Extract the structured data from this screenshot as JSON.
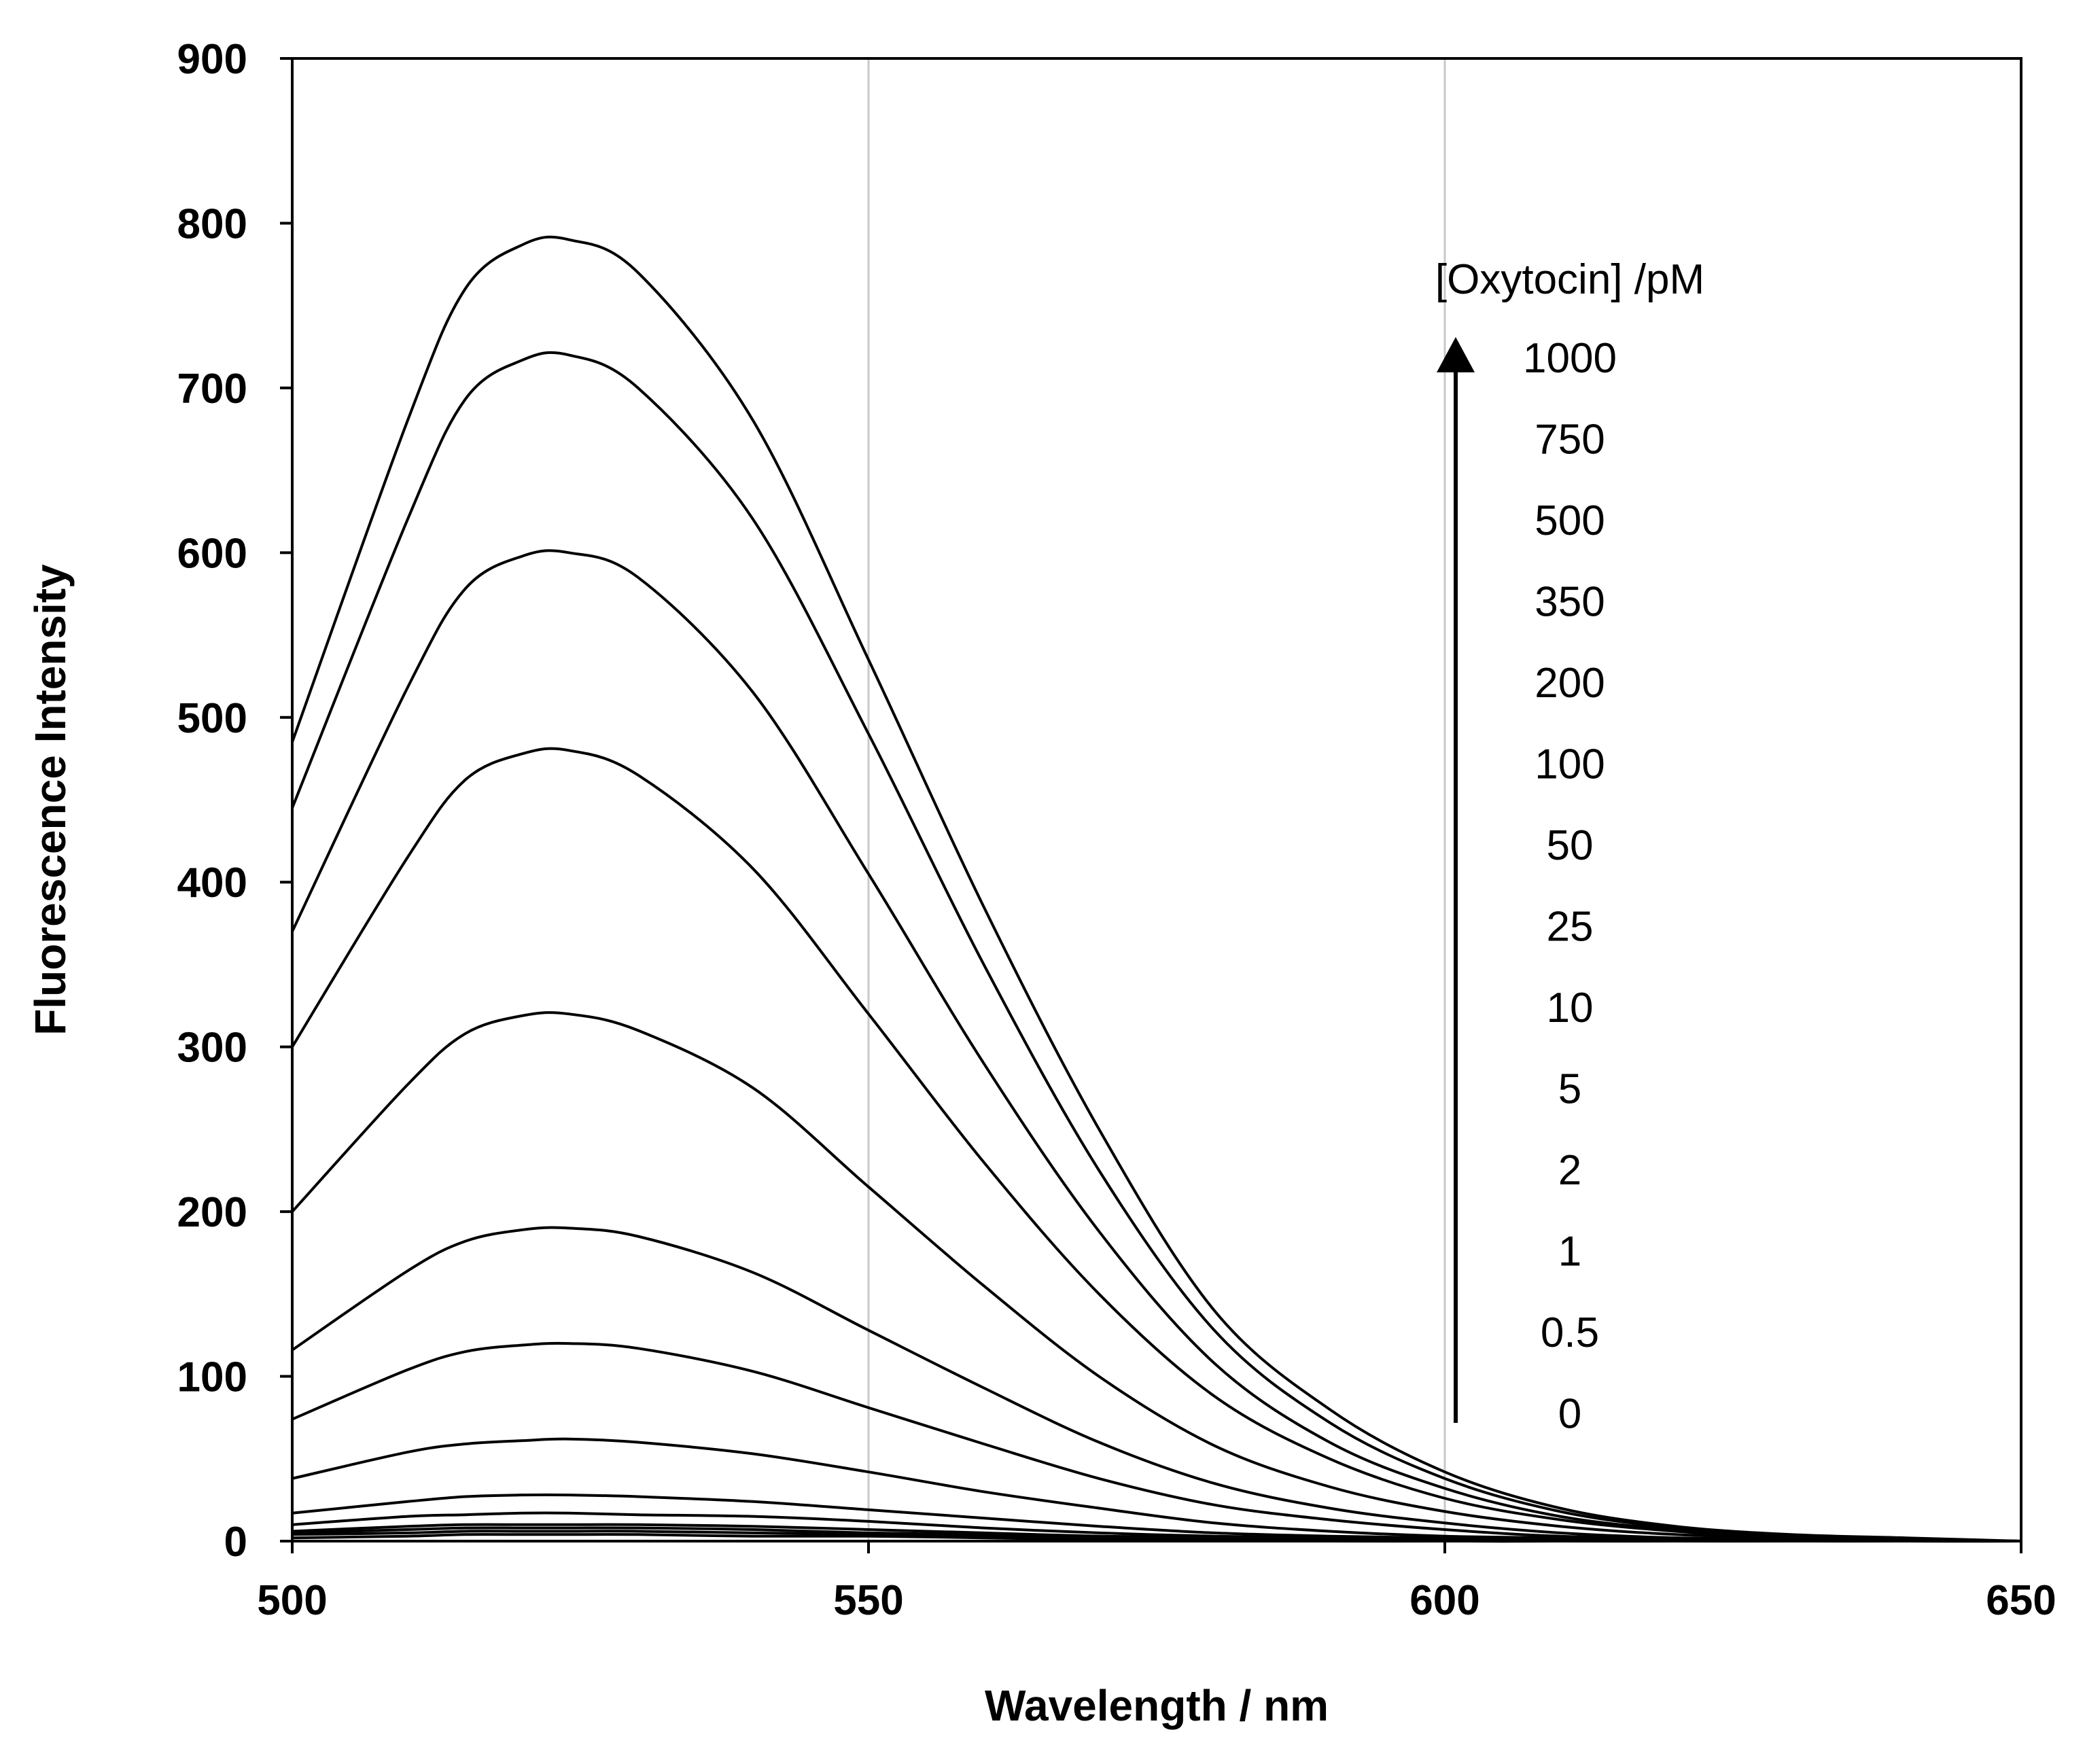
{
  "chart_data": {
    "type": "line",
    "title": "",
    "xlabel": "Wavelength / nm",
    "ylabel": "Fluorescence Intensity",
    "xlim": [
      500,
      650
    ],
    "ylim": [
      0,
      900
    ],
    "xticks": [
      500,
      550,
      600,
      650
    ],
    "yticks": [
      0,
      100,
      200,
      300,
      400,
      500,
      600,
      700,
      800,
      900
    ],
    "grid": "vertical gridlines at x ticks",
    "legend": {
      "title": "[Oxytocin] /pM",
      "placement": "top-right",
      "arrow": "upward arrow beside labels, from 0 to 1000",
      "labels": [
        "1000",
        "750",
        "500",
        "350",
        "200",
        "100",
        "50",
        "25",
        "10",
        "5",
        "2",
        "1",
        "0.5",
        "0"
      ]
    },
    "x": [
      500,
      510,
      515,
      520,
      524,
      530,
      540,
      550,
      560,
      570,
      580,
      590,
      600,
      610,
      620,
      630,
      640,
      650
    ],
    "series": [
      {
        "name": "1000",
        "peak": 790,
        "values": [
          485,
          680,
          760,
          787,
          790,
          770,
          680,
          535,
          385,
          250,
          140,
          80,
          42,
          20,
          9,
          4,
          2,
          0
        ]
      },
      {
        "name": "750",
        "peak": 720,
        "values": [
          445,
          620,
          693,
          717,
          720,
          700,
          620,
          490,
          350,
          225,
          128,
          72,
          38,
          18,
          8,
          3,
          1,
          0
        ]
      },
      {
        "name": "500",
        "peak": 600,
        "values": [
          370,
          518,
          578,
          598,
          600,
          585,
          515,
          405,
          290,
          188,
          108,
          60,
          32,
          15,
          7,
          3,
          1,
          0
        ]
      },
      {
        "name": "350",
        "peak": 480,
        "values": [
          300,
          415,
          462,
          478,
          480,
          465,
          408,
          320,
          230,
          150,
          88,
          50,
          26,
          13,
          6,
          2,
          1,
          0
        ]
      },
      {
        "name": "200",
        "peak": 320,
        "values": [
          200,
          277,
          308,
          319,
          320,
          310,
          275,
          215,
          155,
          100,
          58,
          33,
          18,
          9,
          4,
          2,
          1,
          0
        ]
      },
      {
        "name": "100",
        "peak": 190,
        "values": [
          116,
          164,
          182,
          189,
          190,
          185,
          163,
          128,
          93,
          60,
          35,
          20,
          11,
          5,
          2,
          1,
          0,
          0
        ]
      },
      {
        "name": "50",
        "peak": 120,
        "values": [
          74,
          104,
          115,
          119,
          120,
          117,
          103,
          81,
          59,
          38,
          22,
          13,
          7,
          3,
          2,
          1,
          0,
          0
        ]
      },
      {
        "name": "25",
        "peak": 62,
        "values": [
          38,
          54,
          59,
          61,
          62,
          60,
          53,
          42,
          30,
          20,
          11,
          6,
          3,
          2,
          1,
          0,
          0,
          0
        ]
      },
      {
        "name": "10",
        "peak": 28,
        "values": [
          17,
          24,
          27,
          28,
          28,
          27,
          24,
          19,
          14,
          9,
          5,
          3,
          2,
          1,
          0,
          0,
          0,
          0
        ]
      },
      {
        "name": "5",
        "peak": 17,
        "values": [
          10,
          15,
          16,
          17,
          17,
          16,
          15,
          12,
          8,
          5,
          3,
          2,
          1,
          0,
          0,
          0,
          0,
          0
        ]
      },
      {
        "name": "2",
        "peak": 10,
        "values": [
          6,
          9,
          10,
          10,
          10,
          10,
          9,
          7,
          5,
          3,
          2,
          1,
          0,
          0,
          0,
          0,
          0,
          0
        ]
      },
      {
        "name": "1",
        "peak": 8,
        "values": [
          5,
          7,
          8,
          8,
          8,
          8,
          7,
          5,
          4,
          3,
          2,
          1,
          0,
          0,
          0,
          0,
          0,
          0
        ]
      },
      {
        "name": "0.5",
        "peak": 6,
        "values": [
          4,
          5,
          6,
          6,
          6,
          6,
          5,
          4,
          3,
          2,
          1,
          1,
          0,
          0,
          0,
          0,
          0,
          0
        ]
      },
      {
        "name": "0",
        "peak": 4,
        "values": [
          2,
          3,
          4,
          4,
          4,
          4,
          3,
          3,
          2,
          1,
          1,
          0,
          0,
          0,
          0,
          0,
          0,
          0
        ]
      }
    ]
  }
}
